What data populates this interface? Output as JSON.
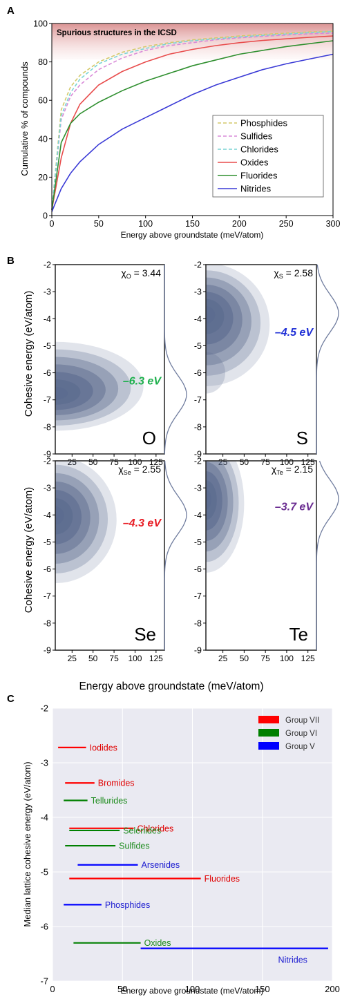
{
  "panel_labels": {
    "a": "A",
    "b": "B",
    "c": "C"
  },
  "colors": {
    "phosphides": "#d4c96a",
    "sulfides": "#d98ad9",
    "chlorides": "#79d4d4",
    "oxides": "#e84c4c",
    "fluorides": "#2f8f2f",
    "nitrides": "#3a3ad6",
    "group_vii": "#ff0000",
    "group_vi": "#008000",
    "group_v": "#0000ff",
    "kde": "#6f7c9e",
    "panel_c_bg": "#eaeaf2"
  },
  "chart_data": [
    {
      "type": "line",
      "banner": "Spurious structures in the ICSD",
      "xlabel": "Energy above groundstate (meV/atom)",
      "ylabel": "Cumulative % of compounds",
      "xlim": [
        0,
        300
      ],
      "ylim": [
        0,
        100
      ],
      "xticks": [
        "0",
        "50",
        "100",
        "150",
        "200",
        "250",
        "300"
      ],
      "yticks": [
        "0",
        "20",
        "40",
        "60",
        "80",
        "100"
      ],
      "x": [
        0,
        10,
        20,
        30,
        50,
        75,
        100,
        125,
        150,
        175,
        200,
        225,
        250,
        275,
        300
      ],
      "series": [
        {
          "name": "Phosphides",
          "style": "dashed",
          "values": [
            3,
            55,
            67,
            73,
            80,
            85,
            88,
            90,
            91.5,
            92.5,
            93.5,
            94.3,
            95,
            95.6,
            96
          ]
        },
        {
          "name": "Sulfides",
          "style": "dashed",
          "values": [
            3,
            50,
            62,
            68,
            76,
            82,
            86,
            88.5,
            90,
            91.5,
            92.5,
            93.3,
            94,
            94.6,
            95
          ]
        },
        {
          "name": "Chlorides",
          "style": "dashed",
          "values": [
            3,
            52,
            64,
            71,
            79,
            84,
            87,
            89.5,
            91,
            92,
            93,
            93.8,
            94.5,
            95.2,
            95.8
          ]
        },
        {
          "name": "Oxides",
          "style": "solid",
          "values": [
            3,
            30,
            48,
            58,
            68,
            75,
            80,
            84,
            86.5,
            88.5,
            90,
            91.2,
            92,
            92.8,
            93.5
          ]
        },
        {
          "name": "Fluorides",
          "style": "solid",
          "values": [
            3,
            38,
            48,
            53,
            59,
            65,
            70,
            74,
            78,
            81,
            84,
            86,
            88,
            89.5,
            91
          ]
        },
        {
          "name": "Nitrides",
          "style": "solid",
          "values": [
            2,
            14,
            22,
            28,
            37,
            45,
            51,
            57,
            63,
            68,
            72,
            76,
            79,
            81.5,
            84
          ]
        }
      ]
    },
    {
      "type": "heatmap",
      "xlabel": "Energy above groundstate (meV/atom)",
      "ylabel": "Cohesive energy (eV/atom)",
      "xlim": [
        5,
        135
      ],
      "ylim": [
        -9,
        -2
      ],
      "xticks": [
        "25",
        "50",
        "75",
        "100",
        "125"
      ],
      "yticks": [
        "-2",
        "-3",
        "-4",
        "-5",
        "-6",
        "-7",
        "-8",
        "-9"
      ],
      "panels": [
        {
          "element": "O",
          "chi_symbol": "χ",
          "chi_sub": "O",
          "chi_text": "= 3.44",
          "median_label": "–6.3 eV",
          "median_color": "#1db04c",
          "peak_energy": -6.8,
          "spread_e": -6.3,
          "x_reach": 110,
          "secondary_peak": null
        },
        {
          "element": "S",
          "chi_symbol": "χ",
          "chi_sub": "S",
          "chi_text": "= 2.58",
          "median_label": "–4.5 eV",
          "median_color": "#1f2fd6",
          "peak_energy": -3.8,
          "spread_e": -4.5,
          "x_reach": 80,
          "secondary_peak": -6.0
        },
        {
          "element": "Se",
          "chi_symbol": "χ",
          "chi_sub": "Se",
          "chi_text": "= 2.55",
          "median_label": "–4.3 eV",
          "median_color": "#e81c24",
          "peak_energy": -4.0,
          "spread_e": -4.3,
          "x_reach": 78,
          "secondary_peak": null
        },
        {
          "element": "Te",
          "chi_symbol": "χ",
          "chi_sub": "Te",
          "chi_text": "= 2.15",
          "median_label": "–3.7 eV",
          "median_color": "#6a2c91",
          "peak_energy": -3.4,
          "spread_e": -3.7,
          "x_reach": 50,
          "secondary_peak": null
        }
      ]
    },
    {
      "type": "bar",
      "xlabel": "Energy above groundstate (meV/atom)",
      "ylabel": "Median lattice cohesive energy (eV/atom)",
      "xlim": [
        0,
        200
      ],
      "ylim": [
        -7,
        -2
      ],
      "xticks": [
        "0",
        "50",
        "100",
        "150",
        "200"
      ],
      "yticks": [
        "-2",
        "-3",
        "-4",
        "-5",
        "-6",
        "-7"
      ],
      "legend": [
        {
          "name": "Group VII",
          "group": "group_vii"
        },
        {
          "name": "Group VI",
          "group": "group_vi"
        },
        {
          "name": "Group V",
          "group": "group_v"
        }
      ],
      "series": [
        {
          "name": "Iodides",
          "group": "group_vii",
          "x_start": 4,
          "x_end": 24,
          "y": -2.72
        },
        {
          "name": "Bromides",
          "group": "group_vii",
          "x_start": 9,
          "x_end": 30,
          "y": -3.37
        },
        {
          "name": "Tellurides",
          "group": "group_vi",
          "x_start": 8,
          "x_end": 25,
          "y": -3.69
        },
        {
          "name": "Chlorides",
          "group": "group_vii",
          "x_start": 12,
          "x_end": 58,
          "y": -4.2
        },
        {
          "name": "Selenides",
          "group": "group_vi",
          "x_start": 12,
          "x_end": 48,
          "y": -4.24
        },
        {
          "name": "Sulfides",
          "group": "group_vi",
          "x_start": 9,
          "x_end": 45,
          "y": -4.52
        },
        {
          "name": "Arsenides",
          "group": "group_v",
          "x_start": 18,
          "x_end": 61,
          "y": -4.87
        },
        {
          "name": "Fluorides",
          "group": "group_vii",
          "x_start": 12,
          "x_end": 106,
          "y": -5.12
        },
        {
          "name": "Phosphides",
          "group": "group_v",
          "x_start": 8,
          "x_end": 35,
          "y": -5.6
        },
        {
          "name": "Oxides",
          "group": "group_vi",
          "x_start": 15,
          "x_end": 63,
          "y": -6.3
        },
        {
          "name": "Nitrides",
          "group": "group_v",
          "x_start": 63,
          "x_end": 197,
          "y": -6.4
        }
      ],
      "label_pos": {
        "Iodides": "right",
        "Bromides": "right",
        "Tellurides": "right",
        "Chlorides": "right",
        "Selenides": "right",
        "Sulfides": "right",
        "Arsenides": "right",
        "Fluorides": "right",
        "Phosphides": "right",
        "Oxides": "right",
        "Nitrides": "below-right"
      }
    }
  ]
}
